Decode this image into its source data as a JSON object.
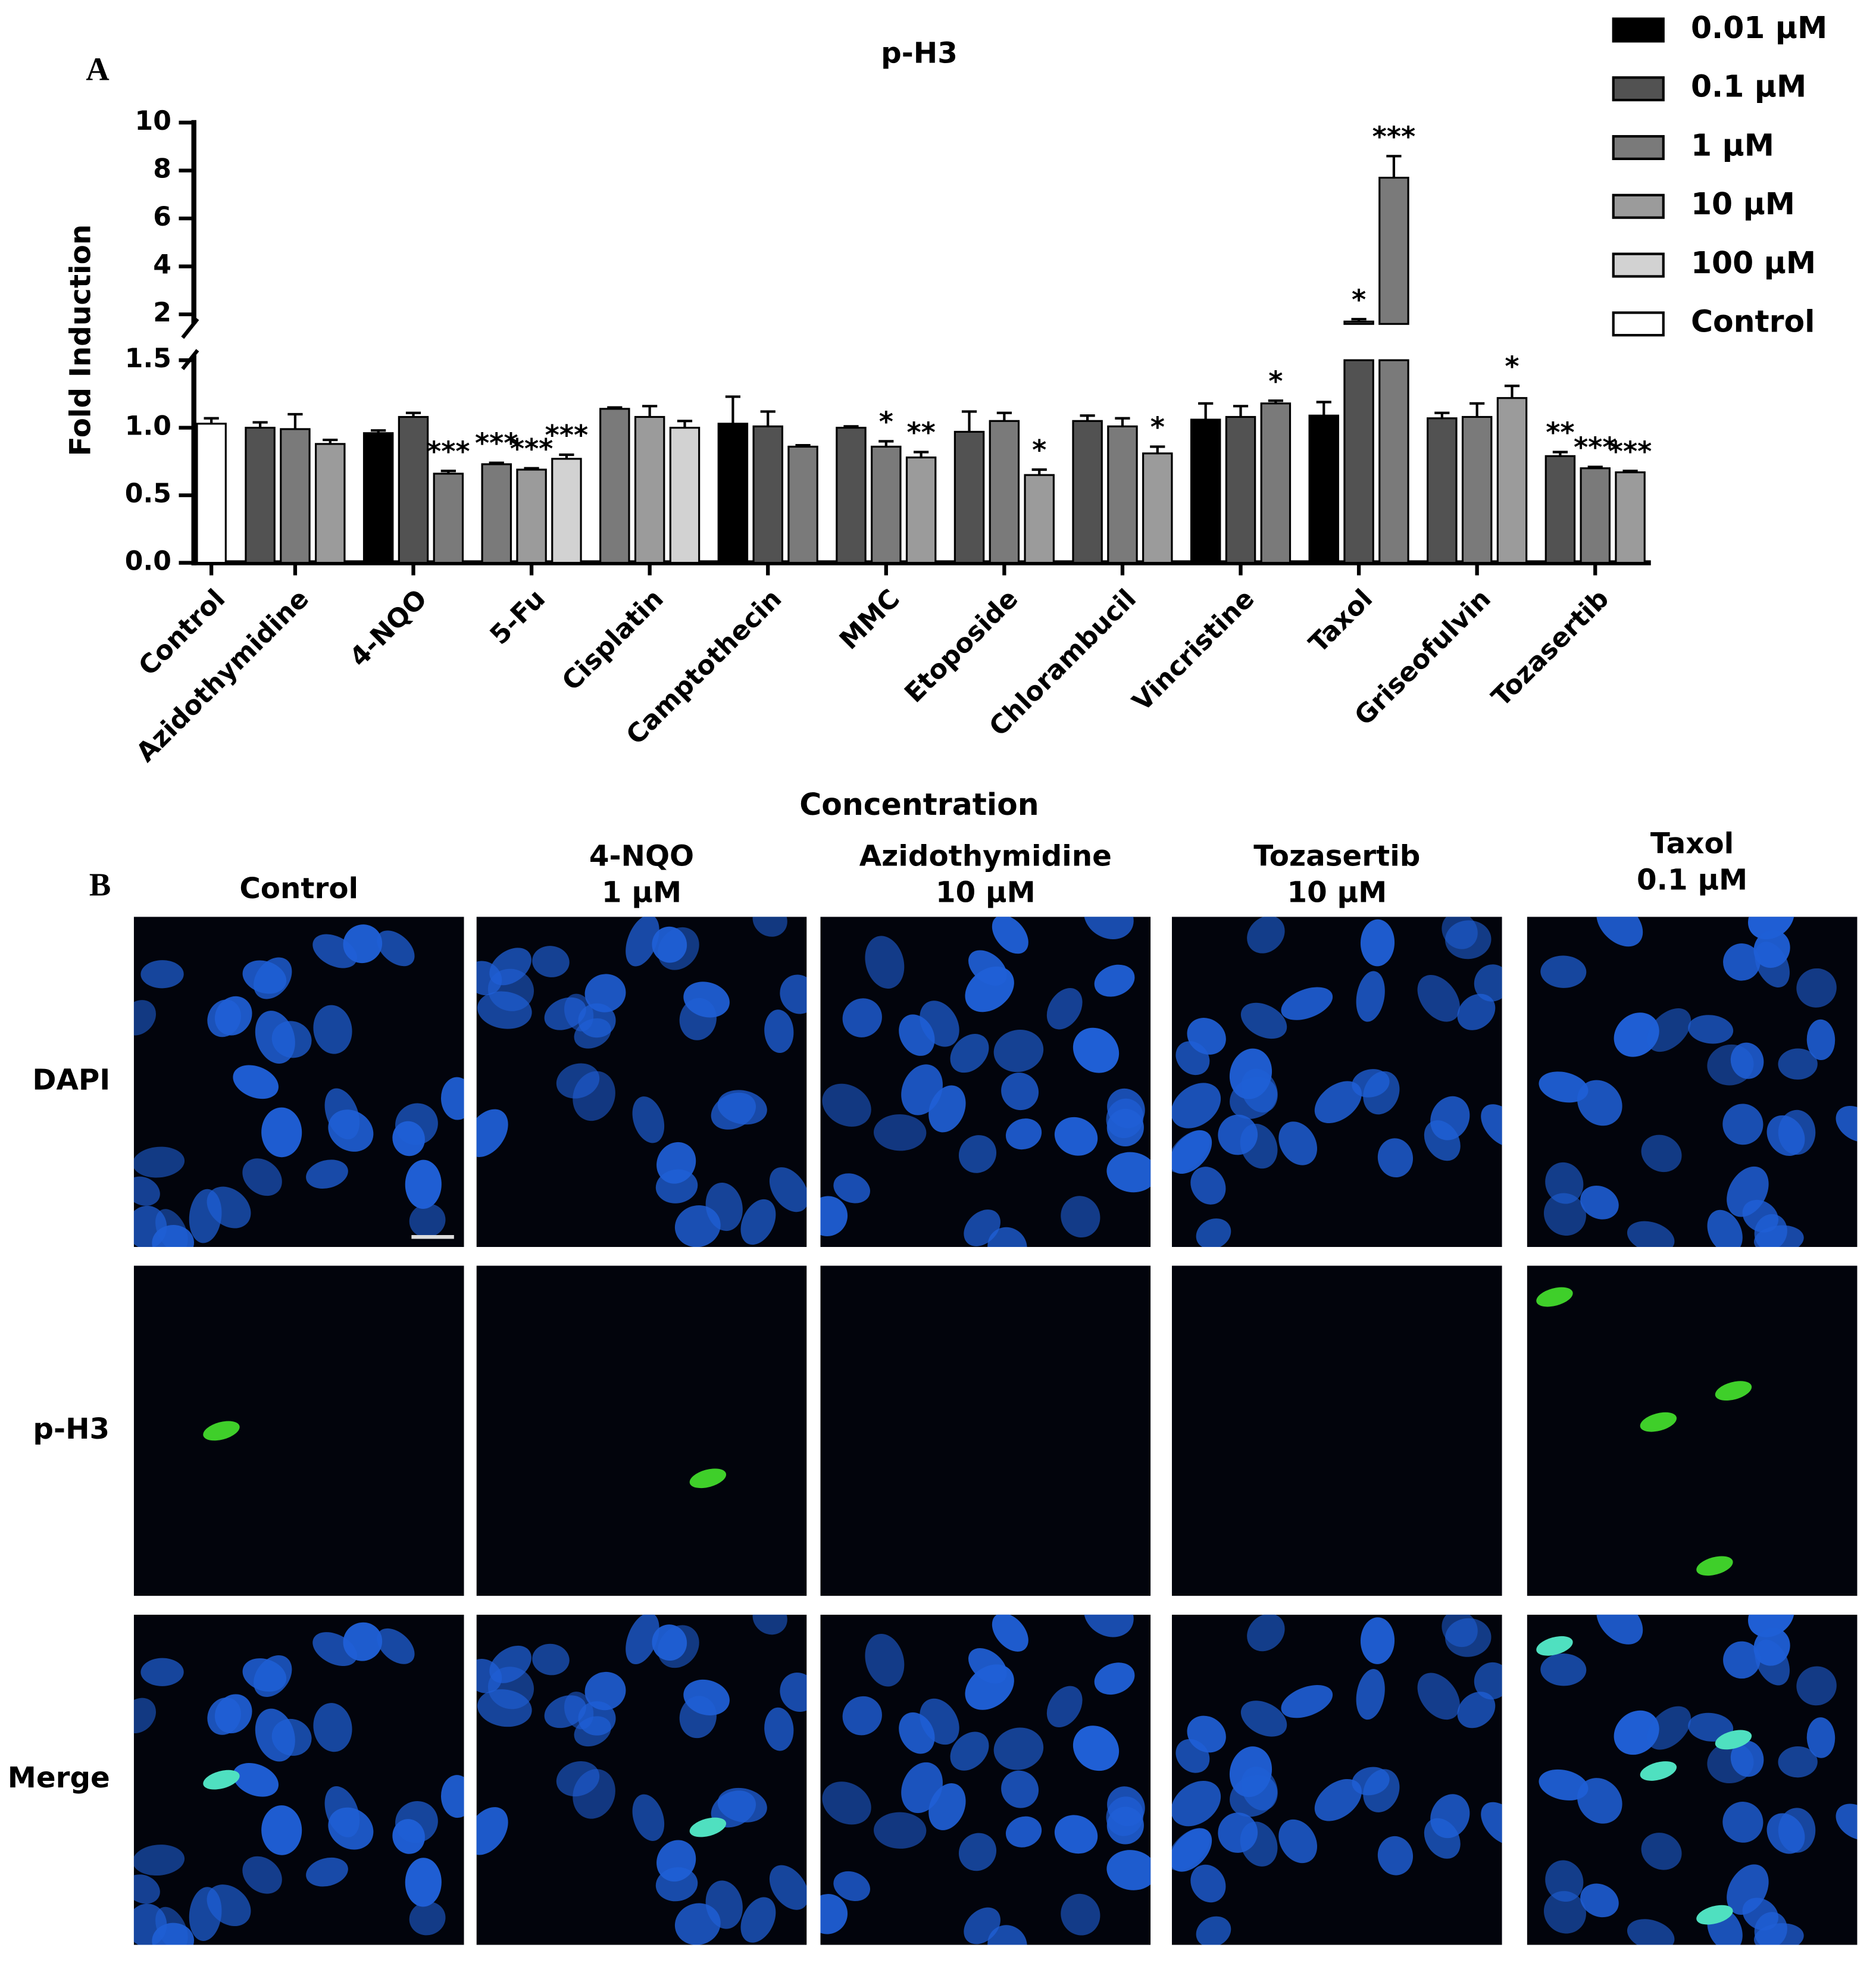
{
  "chart_data": {
    "type": "bar",
    "panel_label": "A",
    "title": "p-H3",
    "y_label": "Fold Induction",
    "x_label": "Concentration",
    "categories": [
      "Control",
      "Azidothymidine",
      "4-NQO",
      "5-Fu",
      "Cisplatin",
      "Camptothecin",
      "MMC",
      "Etoposide",
      "Chlorambucil",
      "Vincristine",
      "Taxol",
      "Griseofulvin",
      "Tozasertib"
    ],
    "series": [
      {
        "name": "0.01 µM",
        "color": "#000000",
        "values": [
          null,
          null,
          0.96,
          null,
          null,
          1.03,
          null,
          null,
          null,
          1.06,
          1.09,
          null,
          null
        ],
        "errors": [
          null,
          null,
          0.02,
          null,
          null,
          0.2,
          null,
          null,
          null,
          0.12,
          0.1,
          null,
          null
        ],
        "significance": [
          null,
          null,
          null,
          null,
          null,
          null,
          null,
          null,
          null,
          null,
          null,
          null,
          null
        ]
      },
      {
        "name": "0.1 µM",
        "color": "#525252",
        "values": [
          null,
          1.0,
          1.08,
          null,
          null,
          1.01,
          1.0,
          0.97,
          1.05,
          1.08,
          1.7,
          1.07,
          0.79
        ],
        "errors": [
          null,
          0.04,
          0.03,
          null,
          null,
          0.11,
          0.01,
          0.15,
          0.04,
          0.08,
          0.1,
          0.04,
          0.03
        ],
        "significance": [
          null,
          null,
          null,
          null,
          null,
          null,
          null,
          null,
          null,
          null,
          "*",
          null,
          "**"
        ]
      },
      {
        "name": "1 µM",
        "color": "#7a7a7a",
        "values": [
          null,
          0.99,
          0.66,
          0.73,
          1.14,
          0.86,
          0.86,
          1.05,
          1.01,
          1.18,
          7.7,
          1.08,
          0.7
        ],
        "errors": [
          null,
          0.11,
          0.02,
          0.01,
          0.01,
          0.01,
          0.04,
          0.06,
          0.06,
          0.02,
          0.9,
          0.1,
          0.01
        ],
        "significance": [
          null,
          null,
          "***",
          "***",
          null,
          null,
          "*",
          null,
          null,
          "*",
          "***",
          null,
          "***"
        ]
      },
      {
        "name": "10 µM",
        "color": "#9b9b9b",
        "values": [
          null,
          0.88,
          null,
          0.69,
          1.08,
          null,
          0.78,
          0.65,
          0.81,
          null,
          null,
          1.22,
          0.67
        ],
        "errors": [
          null,
          0.03,
          null,
          0.01,
          0.08,
          null,
          0.04,
          0.04,
          0.05,
          null,
          null,
          0.09,
          0.01
        ],
        "significance": [
          null,
          null,
          null,
          "***",
          null,
          null,
          "**",
          "*",
          "*",
          null,
          null,
          "*",
          "***"
        ]
      },
      {
        "name": "100 µM",
        "color": "#d2d2d2",
        "values": [
          null,
          null,
          null,
          0.77,
          1.0,
          null,
          null,
          null,
          null,
          null,
          null,
          null,
          null
        ],
        "errors": [
          null,
          null,
          null,
          0.03,
          0.05,
          null,
          null,
          null,
          null,
          null,
          null,
          null,
          null
        ],
        "significance": [
          null,
          null,
          null,
          "***",
          null,
          null,
          null,
          null,
          null,
          null,
          null,
          null,
          null
        ]
      },
      {
        "name": "Control",
        "color": "#ffffff",
        "values": [
          1.03,
          null,
          null,
          null,
          null,
          null,
          null,
          null,
          null,
          null,
          null,
          null,
          null
        ],
        "errors": [
          0.04,
          null,
          null,
          null,
          null,
          null,
          null,
          null,
          null,
          null,
          null,
          null,
          null
        ],
        "significance": [
          null,
          null,
          null,
          null,
          null,
          null,
          null,
          null,
          null,
          null,
          null,
          null,
          null
        ]
      }
    ],
    "ylim": [
      0,
      1.5
    ],
    "yticks": [
      {
        "value": 0,
        "label": "0.0"
      },
      0.5,
      {
        "value": 1,
        "label": "1.0"
      },
      1.5
    ],
    "ylim_upper": [
      1.6,
      10
    ],
    "yticks_upper": [
      2,
      4,
      6,
      8,
      10
    ],
    "axis_break": true,
    "legend": "top-right",
    "error_bars": true
  },
  "panel_b": {
    "label": "B",
    "columns": [
      {
        "name": "Control"
      },
      {
        "name": "4-NQO",
        "dose": "1 µM"
      },
      {
        "name": "Azidothymidine",
        "dose": "10 µM"
      },
      {
        "name": "Tozasertib",
        "dose": "10 µM"
      },
      {
        "name": "Taxol",
        "dose": "0.1 µM"
      }
    ],
    "rows": [
      "DAPI",
      "p-H3",
      "Merge"
    ]
  }
}
